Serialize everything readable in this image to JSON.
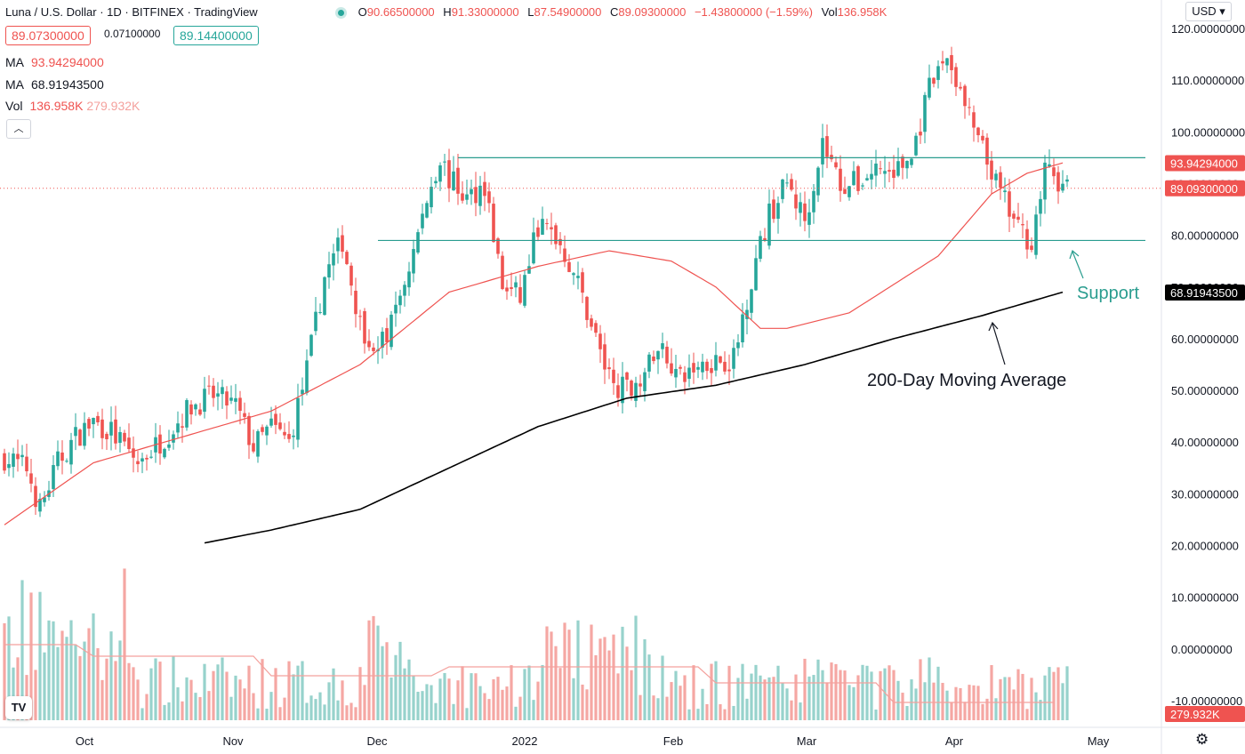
{
  "header": {
    "title": "Luna / U.S. Dollar · 1D · BITFINEX · TradingView",
    "ohlc": {
      "o_label": "O",
      "o": "90.66500000",
      "h_label": "H",
      "h": "91.33000000",
      "l_label": "L",
      "l": "87.54900000",
      "c_label": "C",
      "c": "89.09300000",
      "change": "−1.43800000 (−1.59%)",
      "vol_label": "Vol",
      "vol": "136.958K"
    },
    "sell_price": "89.07300000",
    "spread": "0.07100000",
    "buy_price": "89.14400000"
  },
  "legend": {
    "ma1_label": "MA",
    "ma1_value": "93.94294000",
    "ma2_label": "MA",
    "ma2_value": "68.91943500",
    "vol_label": "Vol",
    "vol_value": "136.958K",
    "vol_ma_value": "279.932K",
    "collapse_icon": "chevron-up-icon"
  },
  "toolbar": {
    "currency": "USD ▾",
    "settings_icon": "gear-icon",
    "logo": "TV"
  },
  "chart_data": {
    "type": "candlestick",
    "title": "Luna / U.S. Dollar",
    "interval": "1D",
    "exchange": "BITFINEX",
    "y_ticks": [
      "120.00000000",
      "110.00000000",
      "100.00000000",
      "90.00000000",
      "80.00000000",
      "70.00000000",
      "60.00000000",
      "50.00000000",
      "40.00000000",
      "30.00000000",
      "20.00000000",
      "10.00000000",
      "0.00000000",
      "-10.00000000"
    ],
    "y_tick_values": [
      120,
      110,
      100,
      90,
      80,
      70,
      60,
      50,
      40,
      30,
      20,
      10,
      0,
      -10
    ],
    "x_ticks": [
      "Oct",
      "Nov",
      "Dec",
      "2022",
      "Feb",
      "Mar",
      "Apr",
      "May"
    ],
    "price_range": [
      -14,
      122
    ],
    "price_anchors": [
      [
        0,
        37
      ],
      [
        5,
        35
      ],
      [
        8,
        27
      ],
      [
        12,
        36
      ],
      [
        16,
        41
      ],
      [
        20,
        44
      ],
      [
        24,
        42
      ],
      [
        30,
        36
      ],
      [
        36,
        41
      ],
      [
        42,
        47
      ],
      [
        47,
        49
      ],
      [
        52,
        47
      ],
      [
        56,
        39
      ],
      [
        60,
        43
      ],
      [
        64,
        40
      ],
      [
        68,
        54
      ],
      [
        72,
        72
      ],
      [
        76,
        79
      ],
      [
        80,
        63
      ],
      [
        84,
        57
      ],
      [
        88,
        65
      ],
      [
        92,
        77
      ],
      [
        96,
        90
      ],
      [
        98,
        95
      ],
      [
        100,
        91
      ],
      [
        104,
        87
      ],
      [
        108,
        90
      ],
      [
        112,
        70
      ],
      [
        116,
        68
      ],
      [
        120,
        82
      ],
      [
        124,
        80
      ],
      [
        128,
        73
      ],
      [
        132,
        63
      ],
      [
        136,
        52
      ],
      [
        140,
        50
      ],
      [
        144,
        54
      ],
      [
        148,
        58
      ],
      [
        152,
        52
      ],
      [
        156,
        55
      ],
      [
        160,
        56
      ],
      [
        164,
        56
      ],
      [
        168,
        72
      ],
      [
        172,
        84
      ],
      [
        176,
        90
      ],
      [
        180,
        83
      ],
      [
        184,
        98
      ],
      [
        188,
        90
      ],
      [
        192,
        90
      ],
      [
        196,
        93
      ],
      [
        200,
        92
      ],
      [
        204,
        95
      ],
      [
        208,
        108
      ],
      [
        212,
        115
      ],
      [
        216,
        105
      ],
      [
        220,
        96
      ],
      [
        224,
        88
      ],
      [
        228,
        81
      ],
      [
        231,
        79
      ],
      [
        234,
        92
      ],
      [
        236,
        92
      ],
      [
        238,
        89
      ]
    ],
    "ma_short": {
      "name": "MA",
      "last_value": 93.94294,
      "color": "#ef5350",
      "points": [
        [
          0,
          24
        ],
        [
          20,
          36
        ],
        [
          40,
          41
        ],
        [
          60,
          46
        ],
        [
          80,
          55
        ],
        [
          100,
          69
        ],
        [
          120,
          74
        ],
        [
          136,
          77
        ],
        [
          150,
          75
        ],
        [
          160,
          70
        ],
        [
          170,
          62
        ],
        [
          176,
          62
        ],
        [
          190,
          65
        ],
        [
          210,
          76
        ],
        [
          222,
          88
        ],
        [
          230,
          92
        ],
        [
          238,
          94
        ]
      ]
    },
    "ma_long": {
      "name": "MA",
      "last_value": 68.919435,
      "color": "#000000",
      "points": [
        [
          45,
          20.5
        ],
        [
          60,
          23
        ],
        [
          80,
          27
        ],
        [
          100,
          35
        ],
        [
          120,
          43
        ],
        [
          140,
          48.5
        ],
        [
          160,
          51
        ],
        [
          180,
          55
        ],
        [
          200,
          60
        ],
        [
          220,
          64.5
        ],
        [
          238,
          69
        ]
      ]
    },
    "volume": {
      "label": "Vol",
      "last": "136.958K",
      "ma_last": "279.932K",
      "ma_color": "#f4a19d"
    },
    "price_lines": [
      {
        "label": "MA",
        "value": "93.94294000",
        "color": "#ef5350"
      },
      {
        "label": "Last",
        "value": "89.09300000",
        "color": "#ef5350"
      },
      {
        "label": "MA200",
        "value": "68.91943500",
        "color": "#000000"
      },
      {
        "label": "Vol MA",
        "value": "279.932K",
        "color": "#ef5350"
      }
    ],
    "resistance": 95,
    "support": 79,
    "annotations": [
      "Support",
      "200-Day Moving Average"
    ]
  }
}
